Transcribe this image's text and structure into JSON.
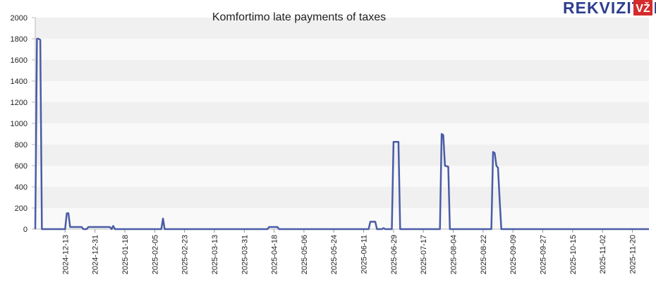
{
  "logo": {
    "text": "REKVIZITAI",
    "badge": "VŽ",
    "text_color": "#2e3e8e",
    "badge_color": "#d42b2b"
  },
  "chart_data": {
    "type": "line",
    "title": "Komfortimo late payments of taxes",
    "xlabel": "",
    "ylabel": "",
    "ylim": [
      0,
      2000
    ],
    "yticks": [
      0,
      200,
      400,
      600,
      800,
      1000,
      1200,
      1400,
      1600,
      1800,
      2000
    ],
    "xlim": [
      "2024-11-25",
      "2025-11-30"
    ],
    "xticks": [
      "2024-12-13",
      "2024-12-31",
      "2025-01-18",
      "2025-02-05",
      "2025-02-23",
      "2025-03-13",
      "2025-03-31",
      "2025-04-18",
      "2025-05-06",
      "2025-05-24",
      "2025-06-11",
      "2025-06-29",
      "2025-07-17",
      "2025-08-04",
      "2025-08-22",
      "2025-09-09",
      "2025-09-27",
      "2025-10-15",
      "2025-11-02",
      "2025-11-20"
    ],
    "grid": "horizontal bands",
    "line_color": "#4a5ca6",
    "series": [
      {
        "x": [
          "2024-11-25",
          "2024-11-26",
          "2024-11-27",
          "2024-11-28",
          "2024-11-29",
          "2024-12-13",
          "2024-12-14",
          "2024-12-15",
          "2024-12-16",
          "2024-12-20",
          "2024-12-23",
          "2024-12-24",
          "2024-12-26",
          "2024-12-27",
          "2024-12-28",
          "2025-01-09",
          "2025-01-10",
          "2025-01-11",
          "2025-01-12",
          "2025-01-13",
          "2025-01-14",
          "2025-02-09",
          "2025-02-10",
          "2025-02-11",
          "2025-04-14",
          "2025-04-15",
          "2025-04-20",
          "2025-04-21",
          "2025-06-14",
          "2025-06-15",
          "2025-06-18",
          "2025-06-19",
          "2025-06-22",
          "2025-06-23",
          "2025-06-24",
          "2025-06-28",
          "2025-06-29",
          "2025-07-02",
          "2025-07-03",
          "2025-07-27",
          "2025-07-28",
          "2025-07-29",
          "2025-07-30",
          "2025-08-01",
          "2025-08-02",
          "2025-08-27",
          "2025-08-28",
          "2025-08-29",
          "2025-08-30",
          "2025-08-31",
          "2025-09-01",
          "2025-09-02",
          "2025-11-30"
        ],
        "y": [
          0,
          1800,
          1800,
          1790,
          0,
          0,
          150,
          150,
          20,
          20,
          20,
          0,
          0,
          20,
          20,
          20,
          0,
          30,
          0,
          0,
          0,
          0,
          100,
          0,
          0,
          20,
          20,
          0,
          0,
          70,
          70,
          0,
          0,
          10,
          0,
          0,
          825,
          825,
          0,
          0,
          900,
          890,
          600,
          590,
          0,
          0,
          730,
          720,
          600,
          580,
          270,
          0,
          0
        ]
      }
    ]
  }
}
